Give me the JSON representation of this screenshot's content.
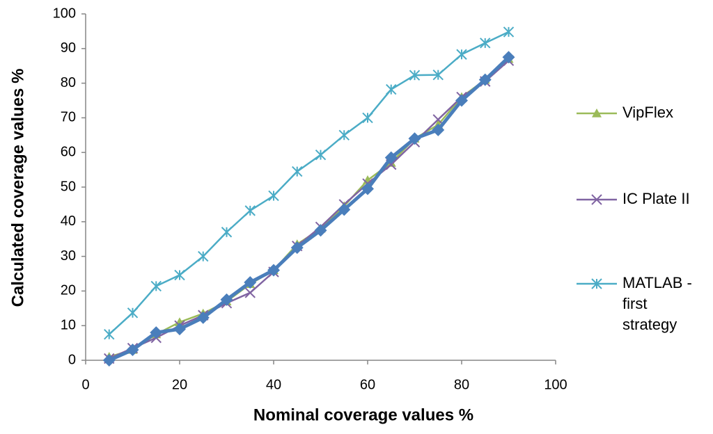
{
  "chart_data": {
    "type": "line",
    "xlabel": "Nominal coverage values %",
    "ylabel": "Calculated coverage values %",
    "x": [
      5,
      10,
      15,
      20,
      25,
      30,
      35,
      40,
      45,
      50,
      55,
      60,
      65,
      70,
      75,
      80,
      85,
      90
    ],
    "series": [
      {
        "name": "VipFlex",
        "color": "#9bbb59",
        "marker": "triangle",
        "values": [
          1,
          3,
          7.5,
          11,
          13.5,
          17,
          22,
          26,
          33.5,
          38,
          44.5,
          52,
          57,
          64,
          68,
          76,
          81,
          87
        ]
      },
      {
        "name": "IC Plate II",
        "color": "#8064a2",
        "marker": "x",
        "values": [
          0.5,
          3.5,
          6.5,
          10,
          13,
          16.5,
          19.5,
          25.5,
          33,
          38.5,
          45,
          51,
          56.5,
          63,
          69.5,
          76,
          80.5,
          86.5
        ]
      },
      {
        "name": "MATLAB - first strategy",
        "color": "#4bacc6",
        "marker": "star",
        "values": [
          7.5,
          13.7,
          21.4,
          24.6,
          30,
          37,
          43.2,
          47.5,
          54.5,
          59.3,
          65,
          70,
          78.2,
          82.3,
          82.4,
          88.3,
          91.6,
          94.8
        ]
      },
      {
        "color": "#4a7ebb",
        "marker": "diamond",
        "values": [
          0,
          3,
          8,
          9,
          12.3,
          17.5,
          22.5,
          26,
          32.5,
          37.5,
          43.5,
          49.5,
          58.5,
          64,
          66.5,
          75,
          81,
          87.5
        ]
      }
    ],
    "xlim": [
      0,
      100
    ],
    "xticks": [
      0,
      20,
      40,
      60,
      80,
      100
    ],
    "ylim": [
      0,
      100
    ],
    "yticks": [
      0,
      10,
      20,
      30,
      40,
      50,
      60,
      70,
      80,
      90,
      100
    ],
    "legend": "right"
  }
}
